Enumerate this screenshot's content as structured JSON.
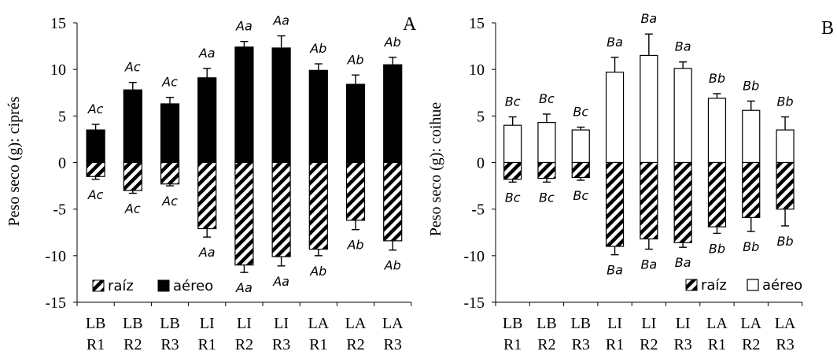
{
  "chart_data": [
    {
      "type": "bar",
      "panel_letter": "A",
      "ylabel": "Peso seco (g): ciprés",
      "ylim": [
        -15,
        15
      ],
      "yticks": [
        -15,
        -10,
        -5,
        0,
        5,
        10,
        15
      ],
      "grid": false,
      "legend_position": "bottom-left",
      "categories": [
        [
          "LB",
          "R1"
        ],
        [
          "LB",
          "R2"
        ],
        [
          "LB",
          "R3"
        ],
        [
          "LI",
          "R1"
        ],
        [
          "LI",
          "R2"
        ],
        [
          "LI",
          "R3"
        ],
        [
          "LA",
          "R1"
        ],
        [
          "LA",
          "R2"
        ],
        [
          "LA",
          "R3"
        ]
      ],
      "series": [
        {
          "name": "aéreo",
          "fill": "solid-black",
          "values": [
            3.5,
            7.8,
            6.3,
            9.1,
            12.4,
            12.3,
            9.9,
            8.4,
            10.5
          ],
          "errors": [
            0.6,
            0.8,
            0.7,
            1.0,
            0.6,
            1.3,
            0.7,
            1.0,
            0.8
          ],
          "labels": [
            "Ac",
            "Ac",
            "Ac",
            "Aa",
            "Aa",
            "Aa",
            "Ab",
            "Ab",
            "Ab"
          ]
        },
        {
          "name": "raíz",
          "fill": "hatched",
          "values": [
            -1.5,
            -3.0,
            -2.3,
            -7.1,
            -11.0,
            -10.1,
            -9.3,
            -6.2,
            -8.4
          ],
          "errors": [
            0.3,
            0.3,
            0.2,
            0.9,
            0.8,
            1.0,
            0.7,
            1.0,
            1.0
          ],
          "labels": [
            "Ac",
            "Ac",
            "Ac",
            "Aa",
            "Aa",
            "Aa",
            "Ab",
            "Ab",
            "Ab"
          ]
        }
      ]
    },
    {
      "type": "bar",
      "panel_letter": "B",
      "ylabel": "Peso seco  (g): coihue",
      "ylim": [
        -15,
        15
      ],
      "yticks": [
        -15,
        -10,
        -5,
        0,
        5,
        10,
        15
      ],
      "grid": false,
      "legend_position": "bottom-right",
      "categories": [
        [
          "LB",
          "R1"
        ],
        [
          "LB",
          "R2"
        ],
        [
          "LB",
          "R3"
        ],
        [
          "LI",
          "R1"
        ],
        [
          "LI",
          "R2"
        ],
        [
          "LI",
          "R3"
        ],
        [
          "LA",
          "R1"
        ],
        [
          "LA",
          "R2"
        ],
        [
          "LA",
          "R3"
        ]
      ],
      "series": [
        {
          "name": "aéreo",
          "fill": "white",
          "values": [
            4.0,
            4.3,
            3.5,
            9.7,
            11.5,
            10.1,
            6.9,
            5.6,
            3.5
          ],
          "errors": [
            0.9,
            0.9,
            0.3,
            1.6,
            2.3,
            0.7,
            0.5,
            1.0,
            1.4
          ],
          "labels": [
            "Bc",
            "Bc",
            "Bc",
            "Ba",
            "Ba",
            "Ba",
            "Bb",
            "Bb",
            "Bb"
          ]
        },
        {
          "name": "raíz",
          "fill": "hatched",
          "values": [
            -1.8,
            -1.7,
            -1.6,
            -9.0,
            -8.2,
            -8.6,
            -6.9,
            -5.9,
            -5.0
          ],
          "errors": [
            0.3,
            0.4,
            0.3,
            0.9,
            1.1,
            0.5,
            0.7,
            1.5,
            1.8
          ],
          "labels": [
            "Bc",
            "Bc",
            "Bc",
            "Ba",
            "Ba",
            "Ba",
            "Bb",
            "Bb",
            "Bb"
          ]
        }
      ]
    }
  ]
}
